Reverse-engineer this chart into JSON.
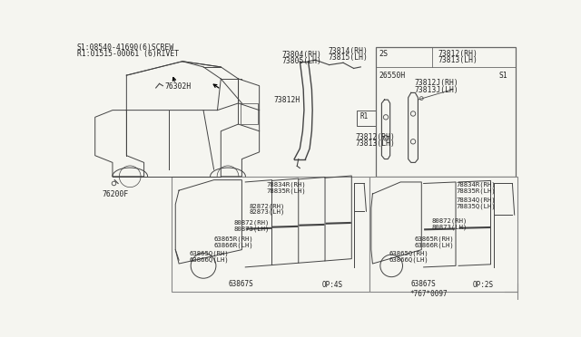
{
  "bg_color": "#f5f5f0",
  "line_color": "#555555",
  "text_color": "#222222",
  "header_lines": [
    "S1:08540-41690(6)SCREW",
    "R1:01515-00061 (6)RIVET"
  ],
  "footnote": "*767*0097"
}
